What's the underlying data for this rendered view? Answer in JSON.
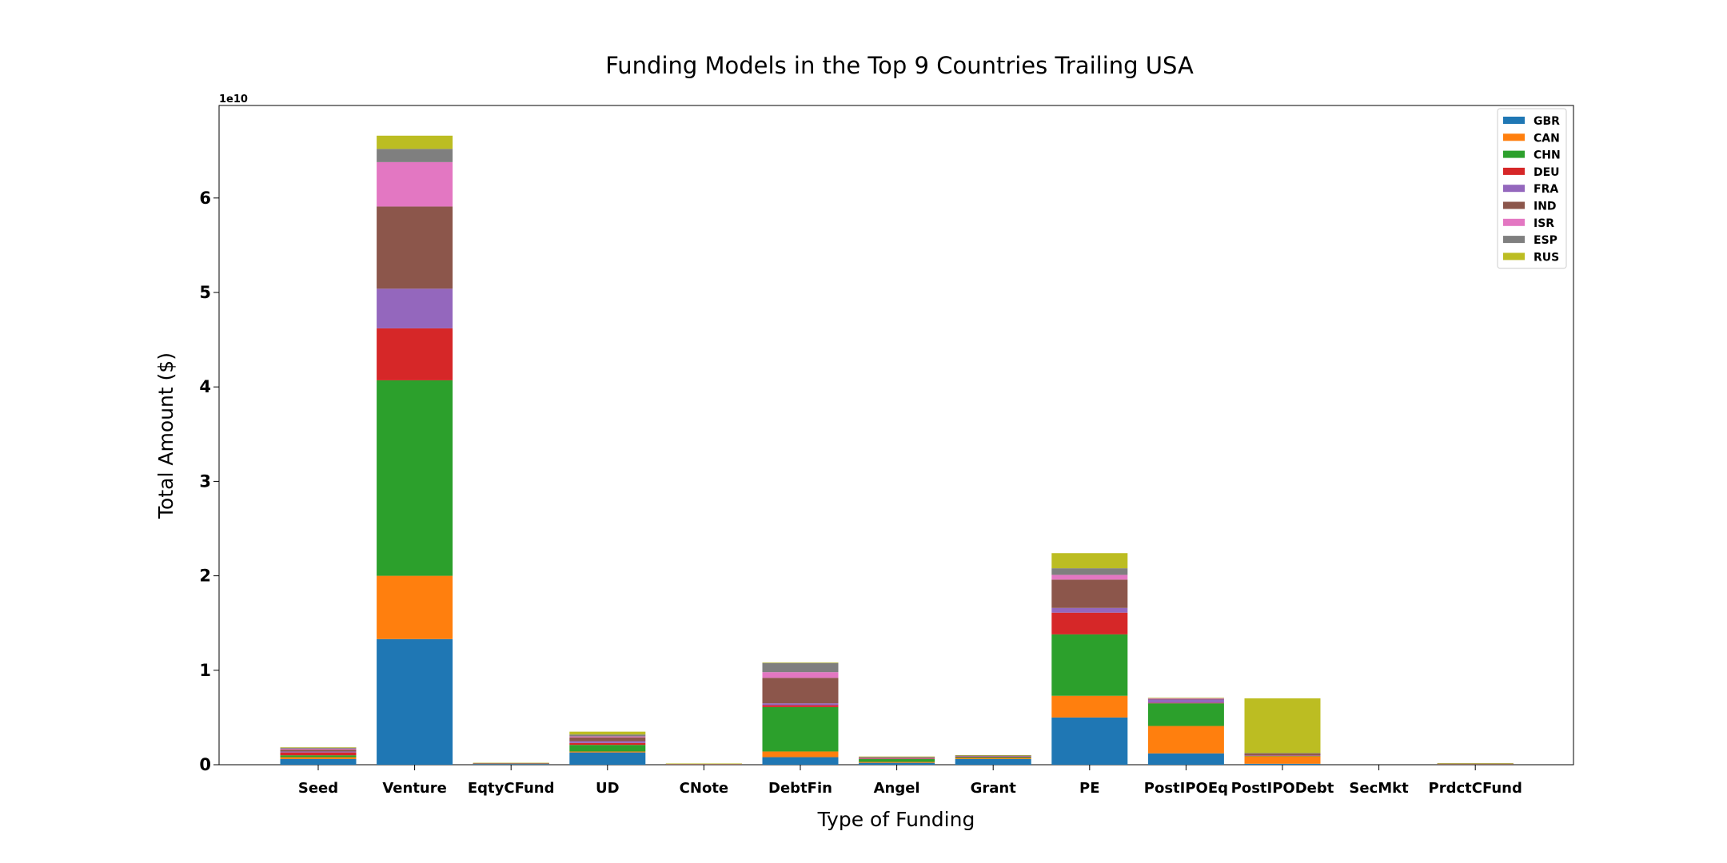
{
  "chart_data": {
    "type": "bar",
    "stacked": true,
    "title": "Funding Models in the Top 9 Countries Trailing USA",
    "xlabel": "Type of Funding",
    "ylabel": "Total Amount ($)",
    "y_scale_label": "1e10",
    "ylim": [
      0,
      7.0
    ],
    "y_ticks": [
      0,
      1,
      2,
      3,
      4,
      5,
      6
    ],
    "grid": false,
    "legend_position": "top-right",
    "categories": [
      "Seed",
      "Venture",
      "EqtyCFund",
      "UD",
      "CNote",
      "DebtFin",
      "Angel",
      "Grant",
      "PE",
      "PostIPOEq",
      "PostIPODebt",
      "SecMkt",
      "PrdctCFund"
    ],
    "series": [
      {
        "name": "GBR",
        "color": "#1f77b4",
        "values": [
          0.06,
          1.33,
          0.01,
          0.13,
          0.005,
          0.08,
          0.02,
          0.06,
          0.5,
          0.12,
          0.01,
          0.0,
          0.005
        ]
      },
      {
        "name": "CAN",
        "color": "#ff7f0e",
        "values": [
          0.02,
          0.67,
          0.002,
          0.01,
          0.001,
          0.06,
          0.01,
          0.01,
          0.23,
          0.29,
          0.08,
          0.0,
          0.002
        ]
      },
      {
        "name": "CHN",
        "color": "#2ca02c",
        "values": [
          0.02,
          2.07,
          0.002,
          0.07,
          0.001,
          0.47,
          0.03,
          0.01,
          0.65,
          0.24,
          0.005,
          0.0,
          0.002
        ]
      },
      {
        "name": "DEU",
        "color": "#d62728",
        "values": [
          0.03,
          0.55,
          0.001,
          0.02,
          0.001,
          0.02,
          0.005,
          0.005,
          0.23,
          0.005,
          0.005,
          0.0,
          0.002
        ]
      },
      {
        "name": "FRA",
        "color": "#9467bd",
        "values": [
          0.01,
          0.42,
          0.001,
          0.02,
          0.001,
          0.02,
          0.005,
          0.005,
          0.05,
          0.04,
          0.001,
          0.0,
          0.001
        ]
      },
      {
        "name": "IND",
        "color": "#8c564b",
        "values": [
          0.02,
          0.87,
          0.001,
          0.04,
          0.001,
          0.27,
          0.01,
          0.005,
          0.3,
          0.001,
          0.02,
          0.0,
          0.001
        ]
      },
      {
        "name": "ISR",
        "color": "#e377c2",
        "values": [
          0.01,
          0.47,
          0.001,
          0.01,
          0.001,
          0.06,
          0.001,
          0.001,
          0.05,
          0.01,
          0.001,
          0.0,
          0.001
        ]
      },
      {
        "name": "ESP",
        "color": "#7f7f7f",
        "values": [
          0.01,
          0.14,
          0.001,
          0.02,
          0.001,
          0.1,
          0.001,
          0.001,
          0.07,
          0.001,
          0.001,
          0.0,
          0.001
        ]
      },
      {
        "name": "RUS",
        "color": "#bcbd22",
        "values": [
          0.005,
          0.14,
          0.001,
          0.03,
          0.001,
          0.001,
          0.005,
          0.005,
          0.16,
          0.001,
          0.58,
          0.0,
          0.001
        ]
      }
    ]
  }
}
